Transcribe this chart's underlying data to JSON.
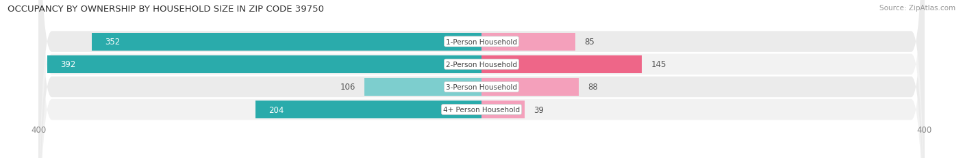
{
  "title": "OCCUPANCY BY OWNERSHIP BY HOUSEHOLD SIZE IN ZIP CODE 39750",
  "source": "Source: ZipAtlas.com",
  "categories": [
    "1-Person Household",
    "2-Person Household",
    "3-Person Household",
    "4+ Person Household"
  ],
  "owner_values": [
    352,
    392,
    106,
    204
  ],
  "renter_values": [
    85,
    145,
    88,
    39
  ],
  "owner_color_dark": "#2AABAB",
  "owner_color_light": "#7DCECE",
  "renter_color_dark": "#EE6688",
  "renter_color_light": "#F4A0BB",
  "row_bg_color_odd": "#F0F0F0",
  "row_bg_color_even": "#E8E8E8",
  "axis_max": 400,
  "title_fontsize": 9.5,
  "source_fontsize": 7.5,
  "tick_fontsize": 8.5,
  "bar_label_fontsize": 8.5,
  "category_fontsize": 7.5,
  "legend_fontsize": 8.5,
  "figsize": [
    14.06,
    2.32
  ],
  "owner_label_inside_threshold": 200,
  "dpi": 100
}
